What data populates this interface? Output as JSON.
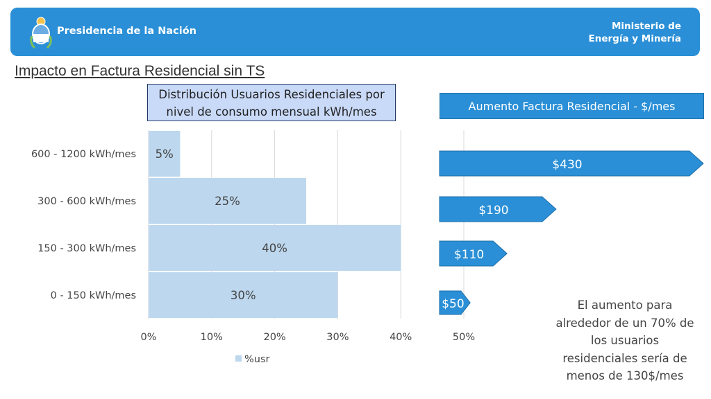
{
  "header": {
    "government_name": "Presidencia de la Nación",
    "ministry_line1": "Ministerio de",
    "ministry_line2": "Energía y Minería",
    "seal_icon": "argentina-coat-of-arms-icon",
    "brand_color": "#2a8fd6"
  },
  "page_title": "Impacto en Factura Residencial sin TS",
  "chart_data": [
    {
      "type": "bar",
      "orientation": "horizontal",
      "title_line1": "Distribución Usuarios Residenciales por",
      "title_line2": "nivel de consumo mensual kWh/mes",
      "categories": [
        "600 - 1200 kWh/mes",
        "300 - 600 kWh/mes",
        "150 - 300 kWh/mes",
        "0 - 150 kWh/mes"
      ],
      "series": [
        {
          "name": "%usr",
          "values": [
            5,
            25,
            40,
            30
          ],
          "labels": [
            "5%",
            "25%",
            "40%",
            "30%"
          ],
          "color": "#bdd7ee"
        }
      ],
      "xlim": [
        0,
        50
      ],
      "x_ticks": [
        "0%",
        "10%",
        "20%",
        "30%",
        "40%",
        "50%"
      ],
      "grid": true,
      "legend": "bottom"
    },
    {
      "type": "bar",
      "orientation": "horizontal",
      "title": "Aumento Factura Residencial - $/mes",
      "categories": [
        "600 - 1200 kWh/mes",
        "300 - 600 kWh/mes",
        "150 - 300 kWh/mes",
        "0 - 150 kWh/mes"
      ],
      "values": [
        430,
        190,
        110,
        50
      ],
      "labels": [
        "$430",
        "$190",
        "$110",
        "$50"
      ],
      "color": "#2a8fd6"
    }
  ],
  "note": "El aumento para alrededor de un 70% de los usuarios residenciales sería de menos de 130$/mes"
}
